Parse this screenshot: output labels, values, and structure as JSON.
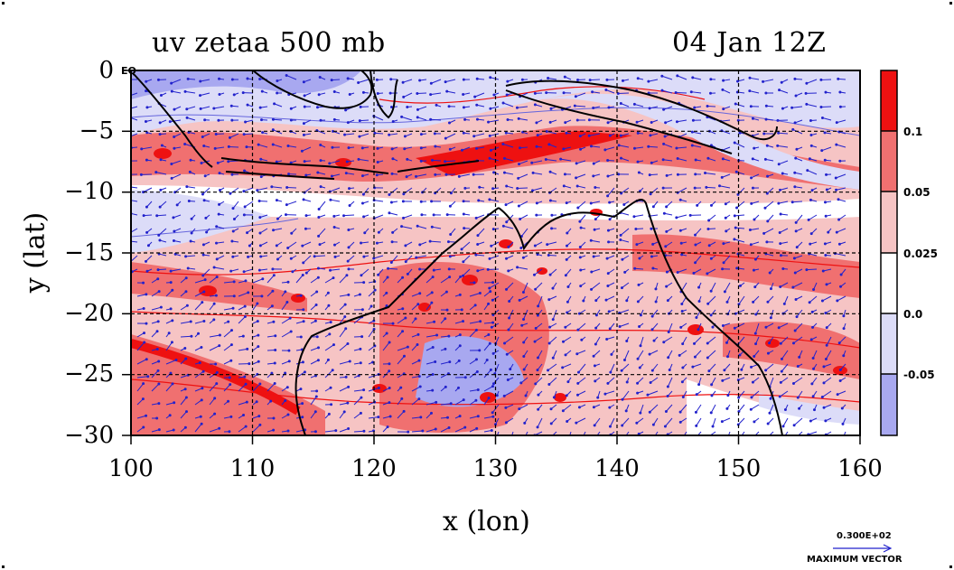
{
  "title_left": "uv zetaa 500 mb",
  "title_right": "04 Jan 12Z",
  "eq_label": "EQ",
  "xlabel": "x (lon)",
  "ylabel": "y (lat)",
  "y_ticks": [
    "0",
    "−5",
    "−10",
    "−15",
    "−20",
    "−25",
    "−30"
  ],
  "x_ticks": [
    "100",
    "110",
    "120",
    "130",
    "140",
    "150",
    "160"
  ],
  "colorbar": {
    "labels": [
      "0.1",
      "0.05",
      "0.025",
      "0.0",
      "-0.05"
    ],
    "colors": [
      "#ee1111",
      "#f07070",
      "#f6c4c4",
      "#ffffff",
      "#dcdcf8",
      "#a8a8f0"
    ]
  },
  "vector_key": {
    "value": "0.300E+02",
    "label": "MAXIMUM VECTOR"
  },
  "colors": {
    "vector": "#2222cc",
    "coast": "#000000",
    "grid": "#000000"
  },
  "chart_data": {
    "type": "heatmap",
    "xlim": [
      100,
      160
    ],
    "ylim": [
      -30,
      0
    ],
    "grid": true
  }
}
